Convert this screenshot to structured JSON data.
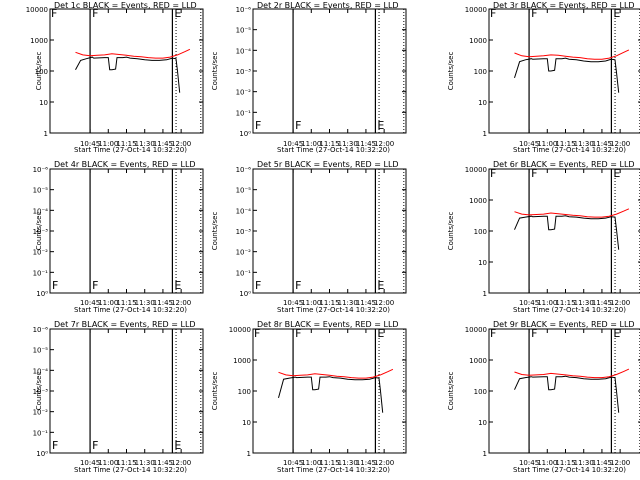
{
  "chart_data": [
    {
      "type": "line",
      "title": "Det 1c BLACK = Events, RED = LLD",
      "ylabel": "Counts/sec",
      "xlabel": "Start Time (27-Oct-14 10:32:20)",
      "x_ticks": [
        "10:45",
        "11:00",
        "11:15",
        "11:30",
        "11:45",
        "12:00"
      ],
      "y_scale": "log",
      "y_ticks": [
        "1",
        "10",
        "100",
        "1000",
        "10000"
      ],
      "ylim": [
        1,
        10000
      ],
      "markers": [
        "F",
        "E"
      ],
      "has_data": true,
      "series": [
        {
          "color": "#000000",
          "x": [
            10.55,
            10.62,
            10.7,
            10.78,
            10.8,
            10.95,
            11.0,
            11.02,
            11.05,
            11.1,
            11.12,
            11.2,
            11.25,
            11.3,
            11.4,
            11.5,
            11.6,
            11.7,
            11.8,
            11.88,
            11.93,
            11.95,
            11.98
          ],
          "y": [
            110,
            220,
            250,
            280,
            260,
            270,
            270,
            110,
            110,
            115,
            270,
            270,
            280,
            260,
            250,
            230,
            220,
            220,
            230,
            260,
            250,
            100,
            20
          ]
        },
        {
          "color": "#ff0000",
          "x": [
            10.55,
            10.65,
            10.75,
            10.85,
            10.95,
            11.05,
            11.15,
            11.25,
            11.35,
            11.45,
            11.55,
            11.65,
            11.75,
            11.85,
            11.95,
            12.05,
            12.12
          ],
          "y": [
            400,
            330,
            310,
            320,
            330,
            360,
            340,
            320,
            300,
            290,
            270,
            260,
            260,
            280,
            330,
            420,
            500
          ]
        }
      ]
    },
    {
      "type": "line",
      "title": "Det 2r BLACK = Events, RED = LLD",
      "ylabel": "Counts/sec",
      "xlabel": "Start Time (27-Oct-14 10:32:20)",
      "x_ticks": [
        "10:45",
        "11:00",
        "11:15",
        "11:30",
        "11:45",
        "12:00"
      ],
      "y_scale": "log",
      "y_ticks": [
        "10⁰",
        "10⁻¹",
        "10⁻²",
        "10⁻³",
        "10⁻⁴",
        "10⁻⁵",
        "10⁻⁶"
      ],
      "ylim": [
        1,
        1e-06
      ],
      "markers": [
        "F",
        "E"
      ],
      "has_data": false,
      "series": []
    },
    {
      "type": "line",
      "title": "Det 3r BLACK = Events, RED = LLD",
      "ylabel": "Counts/sec",
      "xlabel": "Start Time (27-Oct-14 10:32:20)",
      "x_ticks": [
        "10:45",
        "11:00",
        "11:15",
        "11:30",
        "11:45",
        "12:00"
      ],
      "y_scale": "log",
      "y_ticks": [
        "1",
        "10",
        "100",
        "1000",
        "10000"
      ],
      "ylim": [
        1,
        10000
      ],
      "markers": [
        "F",
        "E"
      ],
      "has_data": true,
      "series": [
        {
          "color": "#000000",
          "x": [
            10.55,
            10.62,
            10.7,
            10.78,
            10.8,
            10.95,
            11.0,
            11.02,
            11.05,
            11.1,
            11.12,
            11.2,
            11.25,
            11.3,
            11.4,
            11.5,
            11.6,
            11.7,
            11.8,
            11.88,
            11.93,
            11.95,
            11.98
          ],
          "y": [
            60,
            200,
            230,
            250,
            240,
            250,
            250,
            100,
            100,
            105,
            250,
            250,
            260,
            240,
            230,
            210,
            200,
            200,
            210,
            240,
            230,
            90,
            20
          ]
        },
        {
          "color": "#ff0000",
          "x": [
            10.55,
            10.65,
            10.75,
            10.85,
            10.95,
            11.05,
            11.15,
            11.25,
            11.35,
            11.45,
            11.55,
            11.65,
            11.75,
            11.85,
            11.95,
            12.05,
            12.12
          ],
          "y": [
            380,
            310,
            290,
            300,
            310,
            330,
            320,
            300,
            280,
            270,
            250,
            240,
            240,
            260,
            310,
            400,
            480
          ]
        }
      ]
    },
    {
      "type": "line",
      "title": "Det 4r BLACK = Events, RED = LLD",
      "ylabel": "Counts/sec",
      "xlabel": "Start Time (27-Oct-14 10:32:20)",
      "x_ticks": [
        "10:45",
        "11:00",
        "11:15",
        "11:30",
        "11:45",
        "12:00"
      ],
      "y_scale": "log",
      "y_ticks": [
        "10⁰",
        "10⁻¹",
        "10⁻²",
        "10⁻³",
        "10⁻⁴",
        "10⁻⁵",
        "10⁻⁶"
      ],
      "ylim": [
        1,
        1e-06
      ],
      "markers": [
        "F",
        "E"
      ],
      "has_data": false,
      "series": []
    },
    {
      "type": "line",
      "title": "Det 5r BLACK = Events, RED = LLD",
      "ylabel": "Counts/sec",
      "xlabel": "Start Time (27-Oct-14 10:32:20)",
      "x_ticks": [
        "10:45",
        "11:00",
        "11:15",
        "11:30",
        "11:45",
        "12:00"
      ],
      "y_scale": "log",
      "y_ticks": [
        "10⁰",
        "10⁻¹",
        "10⁻²",
        "10⁻³",
        "10⁻⁴",
        "10⁻⁵",
        "10⁻⁶"
      ],
      "ylim": [
        1,
        1e-06
      ],
      "markers": [
        "F",
        "E"
      ],
      "has_data": false,
      "series": []
    },
    {
      "type": "line",
      "title": "Det 6r BLACK = Events, RED = LLD",
      "ylabel": "Counts/sec",
      "xlabel": "Start Time (27-Oct-14 10:32:20)",
      "x_ticks": [
        "10:45",
        "11:00",
        "11:15",
        "11:30",
        "11:45",
        "12:00"
      ],
      "y_scale": "log",
      "y_ticks": [
        "1",
        "10",
        "100",
        "1000",
        "10000"
      ],
      "ylim": [
        1,
        10000
      ],
      "markers": [
        "F",
        "E"
      ],
      "has_data": true,
      "series": [
        {
          "color": "#000000",
          "x": [
            10.55,
            10.62,
            10.7,
            10.78,
            10.8,
            10.95,
            11.0,
            11.02,
            11.05,
            11.1,
            11.12,
            11.2,
            11.25,
            11.3,
            11.4,
            11.5,
            11.6,
            11.7,
            11.8,
            11.88,
            11.93,
            11.95,
            11.98
          ],
          "y": [
            110,
            260,
            280,
            300,
            290,
            300,
            300,
            110,
            110,
            115,
            300,
            300,
            310,
            290,
            280,
            260,
            250,
            250,
            260,
            290,
            280,
            110,
            25
          ]
        },
        {
          "color": "#ff0000",
          "x": [
            10.55,
            10.65,
            10.75,
            10.85,
            10.95,
            11.05,
            11.15,
            11.25,
            11.35,
            11.45,
            11.55,
            11.65,
            11.75,
            11.85,
            11.95,
            12.05,
            12.12
          ],
          "y": [
            420,
            350,
            330,
            340,
            350,
            380,
            360,
            340,
            320,
            310,
            290,
            280,
            280,
            300,
            350,
            440,
            520
          ]
        }
      ]
    },
    {
      "type": "line",
      "title": "Det 7r BLACK = Events, RED = LLD",
      "ylabel": "Counts/sec",
      "xlabel": "Start Time (27-Oct-14 10:32:20)",
      "x_ticks": [
        "10:45",
        "11:00",
        "11:15",
        "11:30",
        "11:45",
        "12:00"
      ],
      "y_scale": "log",
      "y_ticks": [
        "10⁰",
        "10⁻¹",
        "10⁻²",
        "10⁻³",
        "10⁻⁴",
        "10⁻⁵",
        "10⁻⁶"
      ],
      "ylim": [
        1,
        1e-06
      ],
      "markers": [
        "F",
        "E"
      ],
      "has_data": false,
      "series": []
    },
    {
      "type": "line",
      "title": "Det 8r BLACK = Events, RED = LLD",
      "ylabel": "Counts/sec",
      "xlabel": "Start Time (27-Oct-14 10:32:20)",
      "x_ticks": [
        "10:45",
        "11:00",
        "11:15",
        "11:30",
        "11:45",
        "12:00"
      ],
      "y_scale": "log",
      "y_ticks": [
        "1",
        "10",
        "100",
        "1000",
        "10000"
      ],
      "ylim": [
        1,
        10000
      ],
      "markers": [
        "F",
        "E"
      ],
      "has_data": true,
      "series": [
        {
          "color": "#000000",
          "x": [
            10.55,
            10.62,
            10.7,
            10.78,
            10.8,
            10.95,
            11.0,
            11.02,
            11.05,
            11.1,
            11.12,
            11.2,
            11.25,
            11.3,
            11.4,
            11.5,
            11.6,
            11.7,
            11.8,
            11.88,
            11.93,
            11.95,
            11.98
          ],
          "y": [
            60,
            240,
            260,
            280,
            270,
            280,
            280,
            110,
            110,
            115,
            280,
            280,
            290,
            270,
            260,
            240,
            230,
            230,
            240,
            270,
            260,
            100,
            20
          ]
        },
        {
          "color": "#ff0000",
          "x": [
            10.55,
            10.65,
            10.75,
            10.85,
            10.95,
            11.05,
            11.15,
            11.25,
            11.35,
            11.45,
            11.55,
            11.65,
            11.75,
            11.85,
            11.95,
            12.05,
            12.12
          ],
          "y": [
            400,
            330,
            310,
            320,
            330,
            360,
            340,
            320,
            300,
            290,
            270,
            260,
            260,
            280,
            330,
            420,
            500
          ]
        }
      ]
    },
    {
      "type": "line",
      "title": "Det 9r BLACK = Events, RED = LLD",
      "ylabel": "Counts/sec",
      "xlabel": "Start Time (27-Oct-14 10:32:20)",
      "x_ticks": [
        "10:45",
        "11:00",
        "11:15",
        "11:30",
        "11:45",
        "12:00"
      ],
      "y_scale": "log",
      "y_ticks": [
        "1",
        "10",
        "100",
        "1000",
        "10000"
      ],
      "ylim": [
        1,
        10000
      ],
      "markers": [
        "F",
        "E"
      ],
      "has_data": true,
      "series": [
        {
          "color": "#000000",
          "x": [
            10.55,
            10.62,
            10.7,
            10.78,
            10.8,
            10.95,
            11.0,
            11.02,
            11.05,
            11.1,
            11.12,
            11.2,
            11.25,
            11.3,
            11.4,
            11.5,
            11.6,
            11.7,
            11.8,
            11.88,
            11.93,
            11.95,
            11.98
          ],
          "y": [
            110,
            250,
            270,
            290,
            280,
            290,
            290,
            110,
            110,
            115,
            290,
            290,
            300,
            280,
            270,
            250,
            240,
            240,
            250,
            280,
            270,
            100,
            20
          ]
        },
        {
          "color": "#ff0000",
          "x": [
            10.55,
            10.65,
            10.75,
            10.85,
            10.95,
            11.05,
            11.15,
            11.25,
            11.35,
            11.45,
            11.55,
            11.65,
            11.75,
            11.85,
            11.95,
            12.05,
            12.12
          ],
          "y": [
            410,
            340,
            320,
            330,
            340,
            370,
            350,
            330,
            310,
            300,
            280,
            270,
            270,
            290,
            340,
            430,
            510
          ]
        }
      ]
    }
  ]
}
